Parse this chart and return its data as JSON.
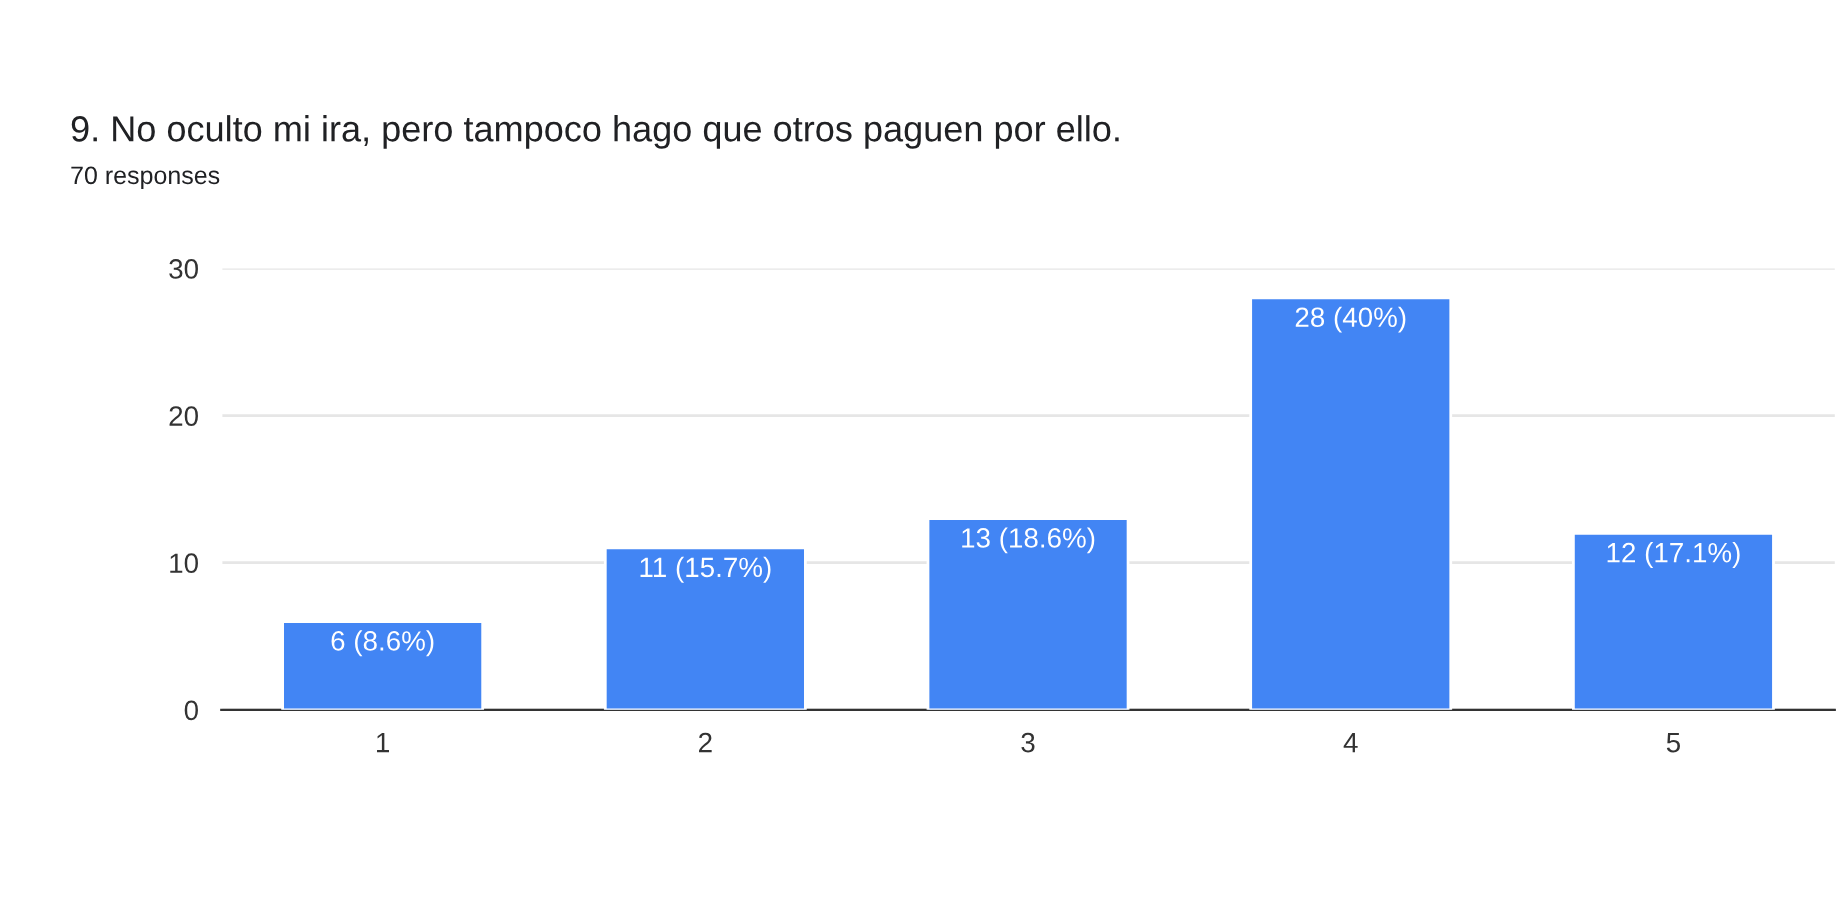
{
  "chart_data": {
    "type": "bar",
    "title": "9. No oculto mi ira, pero tampoco hago que otros paguen por ello.",
    "subtitle": "70 responses",
    "categories": [
      "1",
      "2",
      "3",
      "4",
      "5"
    ],
    "values": [
      6,
      11,
      13,
      28,
      12
    ],
    "value_labels": [
      "6 (8.6%)",
      "11 (15.7%)",
      "13 (18.6%)",
      "28 (40%)",
      "12 (17.1%)"
    ],
    "color": "#4285f4",
    "ylim": [
      0,
      30
    ],
    "yticks": [
      0,
      10,
      20,
      30
    ],
    "grid": "y",
    "legend": false
  }
}
